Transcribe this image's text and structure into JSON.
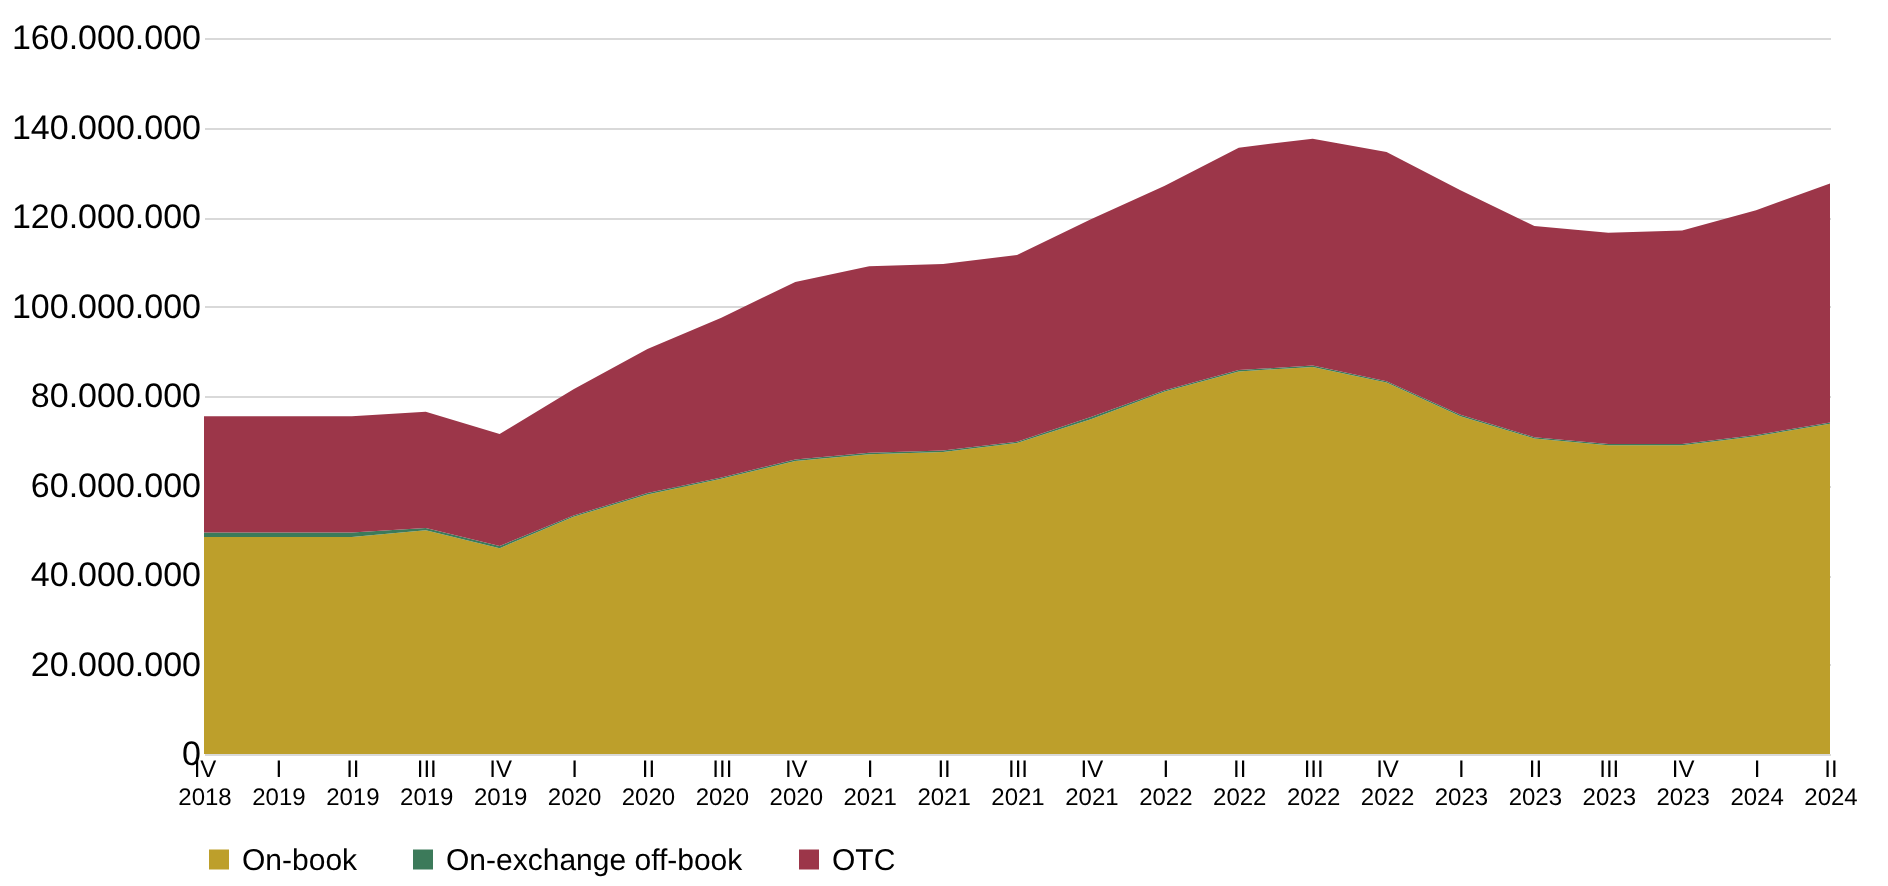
{
  "chart_data": {
    "type": "area",
    "stacked": true,
    "categories": [
      "IV\n2018",
      "I\n2019",
      "II\n2019",
      "III\n2019",
      "IV\n2019",
      "I\n2020",
      "II\n2020",
      "III\n2020",
      "IV\n2020",
      "I\n2021",
      "II\n2021",
      "III\n2021",
      "IV\n2021",
      "I\n2022",
      "II\n2022",
      "III\n2022",
      "IV\n2022",
      "I\n2023",
      "II\n2023",
      "III\n2023",
      "IV\n2023",
      "I\n2024",
      "II\n2024"
    ],
    "series": [
      {
        "name": "On-book",
        "color": "#bd9f2b",
        "values": [
          48500000,
          48500000,
          48500000,
          50000000,
          46000000,
          53000000,
          58000000,
          61500000,
          65500000,
          67000000,
          67500000,
          69500000,
          74800000,
          81000000,
          85500000,
          86500000,
          83000000,
          75500000,
          70500000,
          69000000,
          69000000,
          71000000,
          73800000
        ]
      },
      {
        "name": "On-exchange off-book",
        "color": "#3c7a5a",
        "values": [
          1000000,
          1000000,
          1000000,
          500000,
          500000,
          300000,
          300000,
          300000,
          300000,
          300000,
          300000,
          300000,
          500000,
          300000,
          300000,
          300000,
          300000,
          300000,
          300000,
          300000,
          300000,
          300000,
          300000
        ]
      },
      {
        "name": "OTC",
        "color": "#9c3649",
        "values": [
          26000000,
          26000000,
          26000000,
          26000000,
          25000000,
          28200000,
          32200000,
          35700000,
          39700000,
          41700000,
          41700000,
          41700000,
          44200000,
          45700000,
          49700000,
          50700000,
          51200000,
          50200000,
          47200000,
          47200000,
          47700000,
          50200000,
          53400000
        ]
      }
    ],
    "ylim": [
      0,
      160000000
    ],
    "yticks": [
      {
        "value": 0,
        "label": "0"
      },
      {
        "value": 20000000,
        "label": "20.000.000"
      },
      {
        "value": 40000000,
        "label": "40.000.000"
      },
      {
        "value": 60000000,
        "label": "60.000.000"
      },
      {
        "value": 80000000,
        "label": "80.000.000"
      },
      {
        "value": 100000000,
        "label": "100.000.000"
      },
      {
        "value": 120000000,
        "label": "120.000.000"
      },
      {
        "value": 140000000,
        "label": "140.000.000"
      },
      {
        "value": 160000000,
        "label": "160.000.000"
      }
    ],
    "grid": "y",
    "legend": "bottom"
  }
}
